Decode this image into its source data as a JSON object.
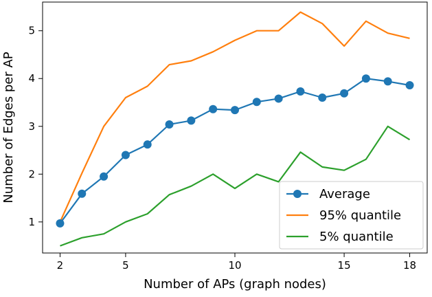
{
  "chart_data": {
    "type": "line",
    "title": "",
    "xlabel": "Number of APs (graph nodes)",
    "ylabel": "Number of Edges per AP",
    "xlim": [
      1.2,
      18.8
    ],
    "ylim": [
      0.35,
      5.6
    ],
    "xticks": [
      2,
      5,
      10,
      15,
      18
    ],
    "yticks": [
      1,
      2,
      3,
      4,
      5
    ],
    "x": [
      2,
      3,
      4,
      5,
      6,
      7,
      8,
      9,
      10,
      11,
      12,
      13,
      14,
      15,
      16,
      17,
      18
    ],
    "series": [
      {
        "name": "Average",
        "color": "#1f77b4",
        "marker": "circle",
        "values": [
          0.97,
          1.59,
          1.95,
          2.4,
          2.62,
          3.04,
          3.12,
          3.36,
          3.34,
          3.51,
          3.58,
          3.73,
          3.6,
          3.69,
          4.0,
          3.94,
          3.86
        ]
      },
      {
        "name": "95% quantile",
        "color": "#ff7f0e",
        "marker": "none",
        "values": [
          1.0,
          2.02,
          3.0,
          3.6,
          3.84,
          4.29,
          4.37,
          4.56,
          4.8,
          5.0,
          5.0,
          5.39,
          5.15,
          4.68,
          5.2,
          4.95,
          4.84
        ]
      },
      {
        "name": "5% quantile",
        "color": "#2ca02c",
        "marker": "none",
        "values": [
          0.5,
          0.67,
          0.75,
          1.0,
          1.17,
          1.57,
          1.75,
          2.0,
          1.7,
          2.0,
          1.84,
          2.46,
          2.15,
          2.08,
          2.31,
          3.0,
          2.72
        ]
      }
    ],
    "legend": {
      "position": "bottom-right"
    },
    "grid": false
  }
}
